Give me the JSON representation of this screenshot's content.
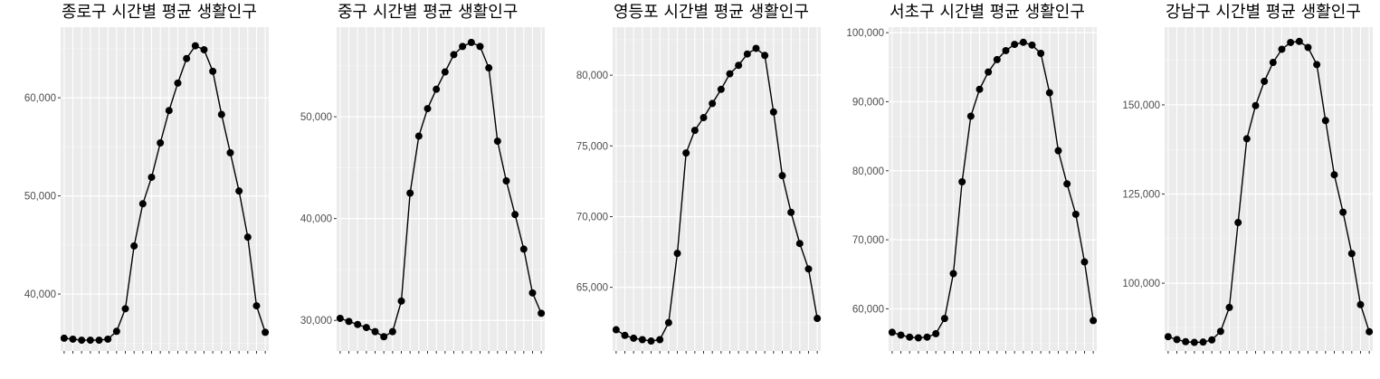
{
  "chart_data": [
    {
      "type": "line",
      "title": "종로구 시간별 평균 생활인구",
      "x": [
        0,
        1,
        2,
        3,
        4,
        5,
        6,
        7,
        8,
        9,
        10,
        11,
        12,
        13,
        14,
        15,
        16,
        17,
        18,
        19,
        20,
        21,
        22,
        23
      ],
      "values": [
        35500,
        35400,
        35300,
        35300,
        35300,
        35400,
        36200,
        38500,
        44900,
        49200,
        51900,
        55400,
        58700,
        61500,
        64000,
        65300,
        64900,
        62700,
        58300,
        54400,
        50500,
        45800,
        38800,
        36100
      ],
      "yticks": [
        40000,
        50000,
        60000
      ],
      "ytick_labels": [
        "40,000",
        "50,000",
        "60,000"
      ],
      "ylim": [
        34200,
        67200
      ],
      "xlabel": "",
      "ylabel": "",
      "grid": true,
      "line_color": "#000000",
      "panel_bg": "#ebebeb"
    },
    {
      "type": "line",
      "title": "중구 시간별 평균 생활인구",
      "x": [
        0,
        1,
        2,
        3,
        4,
        5,
        6,
        7,
        8,
        9,
        10,
        11,
        12,
        13,
        14,
        15,
        16,
        17,
        18,
        19,
        20,
        21,
        22,
        23
      ],
      "values": [
        30200,
        29900,
        29600,
        29300,
        28900,
        28400,
        28900,
        31900,
        42500,
        48100,
        50800,
        52700,
        54400,
        56100,
        56900,
        57300,
        56900,
        54800,
        47600,
        43700,
        40400,
        37000,
        32700,
        30700
      ],
      "yticks": [
        30000,
        40000,
        50000
      ],
      "ytick_labels": [
        "30,000",
        "40,000",
        "50,000"
      ],
      "ylim": [
        27000,
        58800
      ],
      "xlabel": "",
      "ylabel": "",
      "grid": true,
      "line_color": "#000000",
      "panel_bg": "#ebebeb"
    },
    {
      "type": "line",
      "title": "영등포 시간별 평균 생활인구",
      "x": [
        0,
        1,
        2,
        3,
        4,
        5,
        6,
        7,
        8,
        9,
        10,
        11,
        12,
        13,
        14,
        15,
        16,
        17,
        18,
        19,
        20,
        21,
        22,
        23
      ],
      "values": [
        62000,
        61600,
        61400,
        61300,
        61200,
        61300,
        62500,
        67400,
        74500,
        76100,
        77000,
        78000,
        79000,
        80100,
        80700,
        81500,
        81900,
        81400,
        77400,
        72900,
        70300,
        68100,
        66300,
        62800
      ],
      "yticks": [
        65000,
        70000,
        75000,
        80000
      ],
      "ytick_labels": [
        "65,000",
        "70,000",
        "75,000",
        "80,000"
      ],
      "ylim": [
        60500,
        83400
      ],
      "xlabel": "",
      "ylabel": "",
      "grid": true,
      "line_color": "#000000",
      "panel_bg": "#ebebeb"
    },
    {
      "type": "line",
      "title": "서초구 시간별 평균 생활인구",
      "x": [
        0,
        1,
        2,
        3,
        4,
        5,
        6,
        7,
        8,
        9,
        10,
        11,
        12,
        13,
        14,
        15,
        16,
        17,
        18,
        19,
        20,
        21,
        22,
        23
      ],
      "values": [
        56600,
        56200,
        55900,
        55800,
        55900,
        56400,
        58600,
        65100,
        78400,
        87900,
        91800,
        94300,
        96100,
        97400,
        98300,
        98600,
        98200,
        97000,
        91300,
        82900,
        78100,
        73700,
        66800,
        58300
      ],
      "yticks": [
        60000,
        70000,
        80000,
        90000,
        100000
      ],
      "ytick_labels": [
        "60,000",
        "70,000",
        "80,000",
        "90,000",
        "100,000"
      ],
      "ylim": [
        53900,
        100800
      ],
      "xlabel": "",
      "ylabel": "",
      "grid": true,
      "line_color": "#000000",
      "panel_bg": "#ebebeb"
    },
    {
      "type": "line",
      "title": "강남구 시간별 평균 생활인구",
      "x": [
        0,
        1,
        2,
        3,
        4,
        5,
        6,
        7,
        8,
        9,
        10,
        11,
        12,
        13,
        14,
        15,
        16,
        17,
        18,
        19,
        20,
        21,
        22,
        23
      ],
      "values": [
        85000,
        84200,
        83600,
        83400,
        83500,
        84100,
        86500,
        93200,
        117000,
        140500,
        149800,
        156600,
        161900,
        165600,
        167500,
        167800,
        166100,
        161300,
        145600,
        130400,
        119900,
        108300,
        94000,
        86400
      ],
      "yticks": [
        100000,
        125000,
        150000
      ],
      "ytick_labels": [
        "100,000",
        "125,000",
        "150,000"
      ],
      "ylim": [
        81000,
        171800
      ],
      "xlabel": "",
      "ylabel": "",
      "grid": true,
      "line_color": "#000000",
      "panel_bg": "#ebebeb"
    }
  ]
}
